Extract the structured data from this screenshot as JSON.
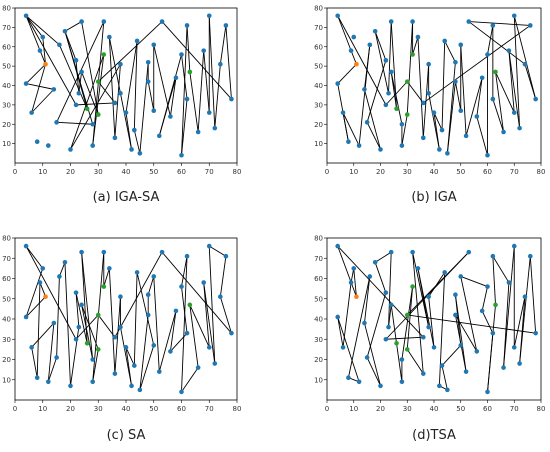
{
  "chart_data": [
    {
      "type": "scatter",
      "title": "(a) IGA-SA",
      "xlim": [
        0,
        80
      ],
      "ylim": [
        0,
        80
      ],
      "xticks": [
        0,
        10,
        20,
        30,
        40,
        50,
        60,
        70,
        80
      ],
      "yticks": [
        10,
        20,
        30,
        40,
        50,
        60,
        70,
        80
      ],
      "colors": {
        "node": "#1f77b4",
        "start": "#ff7f0e",
        "special": "#2ca02c",
        "edge": "#000000"
      }
    },
    {
      "type": "scatter",
      "title": "(b) IGA",
      "xlim": [
        0,
        80
      ],
      "ylim": [
        0,
        80
      ],
      "xticks": [
        0,
        10,
        20,
        30,
        40,
        50,
        60,
        70,
        80
      ],
      "yticks": [
        10,
        20,
        30,
        40,
        50,
        60,
        70,
        80
      ],
      "colors": {
        "node": "#1f77b4",
        "start": "#ff7f0e",
        "special": "#2ca02c",
        "edge": "#000000"
      }
    },
    {
      "type": "scatter",
      "title": "(c) SA",
      "xlim": [
        0,
        80
      ],
      "ylim": [
        0,
        80
      ],
      "xticks": [
        0,
        10,
        20,
        30,
        40,
        50,
        60,
        70,
        80
      ],
      "yticks": [
        10,
        20,
        30,
        40,
        50,
        60,
        70,
        80
      ],
      "colors": {
        "node": "#1f77b4",
        "start": "#ff7f0e",
        "special": "#2ca02c",
        "edge": "#000000"
      }
    },
    {
      "type": "scatter",
      "title": "(d)TSA",
      "xlim": [
        0,
        80
      ],
      "ylim": [
        0,
        80
      ],
      "xticks": [
        0,
        10,
        20,
        30,
        40,
        50,
        60,
        70,
        80
      ],
      "yticks": [
        10,
        20,
        30,
        40,
        50,
        60,
        70,
        80
      ],
      "colors": {
        "node": "#1f77b4",
        "start": "#ff7f0e",
        "special": "#2ca02c",
        "edge": "#000000"
      }
    }
  ],
  "points": [
    [
      4,
      76
    ],
    [
      10,
      65
    ],
    [
      9,
      58
    ],
    [
      11,
      51
    ],
    [
      4,
      41
    ],
    [
      6,
      26
    ],
    [
      8,
      11
    ],
    [
      12,
      9
    ],
    [
      14,
      38
    ],
    [
      16,
      61
    ],
    [
      15,
      21
    ],
    [
      20,
      7
    ],
    [
      18,
      68
    ],
    [
      22,
      53
    ],
    [
      23,
      36
    ],
    [
      24,
      73
    ],
    [
      26,
      28
    ],
    [
      24,
      47
    ],
    [
      28,
      20
    ],
    [
      28,
      9
    ],
    [
      30,
      25
    ],
    [
      32,
      56
    ],
    [
      32,
      73
    ],
    [
      36,
      13
    ],
    [
      34,
      65
    ],
    [
      38,
      36
    ],
    [
      38,
      51
    ],
    [
      40,
      26
    ],
    [
      42,
      7
    ],
    [
      44,
      63
    ],
    [
      43,
      17
    ],
    [
      45,
      5
    ],
    [
      48,
      52
    ],
    [
      50,
      27
    ],
    [
      48,
      42
    ],
    [
      52,
      14
    ],
    [
      50,
      61
    ],
    [
      56,
      24
    ],
    [
      58,
      44
    ],
    [
      60,
      56
    ],
    [
      60,
      4
    ],
    [
      62,
      33
    ],
    [
      62,
      71
    ],
    [
      63,
      47
    ],
    [
      66,
      16
    ],
    [
      68,
      58
    ],
    [
      70,
      26
    ],
    [
      70,
      76
    ],
    [
      72,
      18
    ],
    [
      74,
      51
    ],
    [
      78,
      33
    ],
    [
      76,
      71
    ],
    [
      53,
      73
    ],
    [
      30,
      42
    ],
    [
      36,
      31
    ],
    [
      22,
      30
    ]
  ],
  "tours": [
    [
      0,
      3,
      5,
      8,
      4,
      3,
      1,
      0,
      9,
      16,
      12,
      15,
      20,
      17,
      14,
      13,
      12,
      18,
      10,
      22,
      19,
      21,
      11,
      26,
      23,
      24,
      25,
      28,
      27,
      29,
      30,
      31,
      32,
      34,
      33,
      36,
      37,
      38,
      35,
      39,
      41,
      40,
      42,
      43,
      44,
      45,
      46,
      47,
      48,
      49,
      51,
      50,
      52,
      53,
      54,
      55,
      0
    ],
    [
      0,
      2,
      3,
      4,
      6,
      5,
      7,
      9,
      8,
      11,
      10,
      13,
      12,
      14,
      15,
      16,
      17,
      18,
      19,
      20,
      22,
      21,
      24,
      23,
      26,
      25,
      28,
      27,
      30,
      29,
      32,
      31,
      34,
      33,
      36,
      35,
      38,
      37,
      40,
      39,
      42,
      41,
      44,
      43,
      46,
      45,
      48,
      47,
      50,
      49,
      52,
      51,
      54,
      53,
      55,
      0
    ],
    [
      0,
      1,
      4,
      3,
      2,
      6,
      5,
      8,
      7,
      10,
      9,
      12,
      11,
      14,
      13,
      16,
      15,
      18,
      17,
      20,
      19,
      22,
      21,
      24,
      23,
      26,
      25,
      28,
      27,
      30,
      29,
      33,
      31,
      34,
      32,
      36,
      35,
      38,
      37,
      41,
      39,
      42,
      40,
      44,
      43,
      46,
      45,
      48,
      47,
      51,
      49,
      50,
      52,
      54,
      53,
      55,
      0
    ],
    [
      0,
      3,
      1,
      2,
      5,
      4,
      7,
      6,
      9,
      8,
      11,
      10,
      13,
      12,
      15,
      14,
      17,
      16,
      19,
      18,
      21,
      20,
      23,
      22,
      25,
      24,
      27,
      26,
      29,
      28,
      31,
      30,
      33,
      32,
      35,
      34,
      37,
      36,
      39,
      38,
      41,
      40,
      43,
      42,
      45,
      44,
      47,
      46,
      49,
      48,
      51,
      50,
      53,
      52,
      55,
      54,
      0
    ]
  ],
  "start_index": 3,
  "special_indices": [
    20,
    21,
    53,
    43,
    16
  ]
}
